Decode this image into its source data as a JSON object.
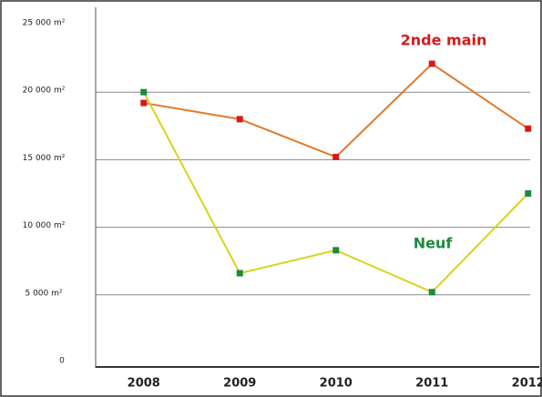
{
  "chart_data": {
    "type": "line",
    "categories": [
      "2008",
      "2009",
      "2010",
      "2011",
      "2012"
    ],
    "series": [
      {
        "name": "2nde main",
        "color": "#e07a2a",
        "marker_color": "#d7191c",
        "label_color": "#d7191c",
        "values": [
          19200,
          18000,
          15200,
          22100,
          17300
        ]
      },
      {
        "name": "Neuf",
        "color": "#d6d41e",
        "marker_color": "#1e8a3c",
        "label_color": "#1e8a3c",
        "values": [
          20000,
          6600,
          8300,
          5200,
          12500
        ]
      }
    ],
    "ylim": [
      0,
      25000
    ],
    "yticks": [
      0,
      {
        "value": 5000,
        "label": "5 000 m²"
      },
      {
        "value": 10000,
        "label": "10 000 m²"
      },
      {
        "value": 15000,
        "label": "15 000 m²"
      },
      {
        "value": 20000,
        "label": "20 000 m²"
      },
      {
        "value": 25000,
        "label": "25 000 m²"
      }
    ],
    "grid": true
  }
}
